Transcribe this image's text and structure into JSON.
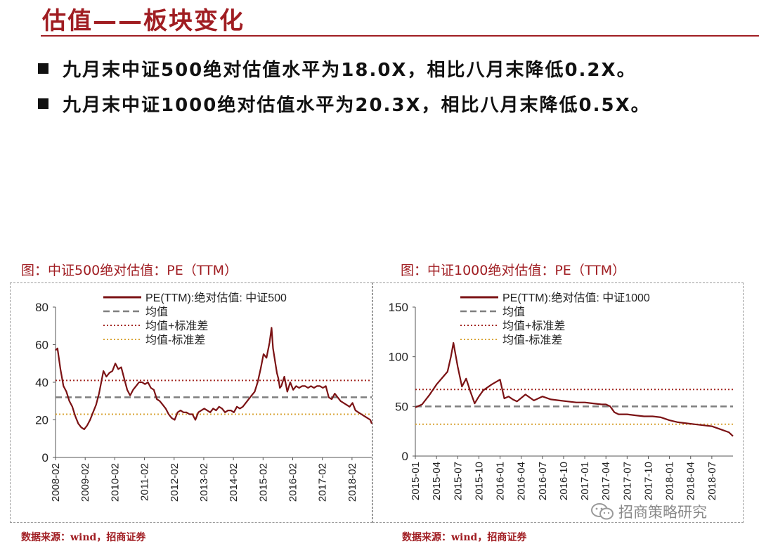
{
  "page": {
    "title": "估值——板块变化",
    "bullets": [
      "九月末中证500绝对估值水平为18.0X，相比八月末降低0.2X。",
      "九月末中证1000绝对估值水平为20.3X，相比八月末降低0.5X。"
    ],
    "watermark": "招商策略研究"
  },
  "colors": {
    "accent": "#a01d22",
    "series": "#7b1214",
    "mean": "#7f7f7f",
    "upper": "#a42a24",
    "lower": "#d9a63a"
  },
  "chart_data": [
    {
      "type": "line",
      "title": "图：中证500绝对估值：PE（TTM）",
      "source": "数据来源：wind，招商证券",
      "ylim": [
        0,
        80
      ],
      "yticks": [
        0,
        20,
        40,
        60,
        80
      ],
      "xlim": [
        2008.083,
        2018.75
      ],
      "xticks": [
        "2008-02",
        "2009-02",
        "2010-02",
        "2011-02",
        "2012-02",
        "2013-02",
        "2014-02",
        "2015-02",
        "2016-02",
        "2017-02",
        "2018-02"
      ],
      "legend": [
        "PE(TTM):绝对估值: 中证500",
        "均值",
        "均值+标准差",
        "均值-标准差"
      ],
      "mean": 32,
      "upper": 41,
      "lower": 23,
      "series": [
        {
          "name": "PE(TTM):绝对估值: 中证500",
          "x": [
            2008.08,
            2008.15,
            2008.25,
            2008.35,
            2008.45,
            2008.55,
            2008.65,
            2008.75,
            2008.85,
            2008.95,
            2009.05,
            2009.15,
            2009.25,
            2009.35,
            2009.45,
            2009.55,
            2009.6,
            2009.7,
            2009.8,
            2009.9,
            2010.0,
            2010.1,
            2010.2,
            2010.3,
            2010.4,
            2010.5,
            2010.6,
            2010.7,
            2010.8,
            2010.9,
            2011.0,
            2011.1,
            2011.2,
            2011.3,
            2011.4,
            2011.5,
            2011.6,
            2011.7,
            2011.8,
            2011.9,
            2012.0,
            2012.1,
            2012.2,
            2012.3,
            2012.4,
            2012.5,
            2012.6,
            2012.7,
            2012.8,
            2012.9,
            2013.0,
            2013.1,
            2013.2,
            2013.3,
            2013.4,
            2013.5,
            2013.6,
            2013.7,
            2013.8,
            2013.9,
            2014.0,
            2014.1,
            2014.2,
            2014.3,
            2014.4,
            2014.5,
            2014.6,
            2014.7,
            2014.8,
            2014.9,
            2015.0,
            2015.1,
            2015.2,
            2015.3,
            2015.37,
            2015.42,
            2015.5,
            2015.55,
            2015.6,
            2015.65,
            2015.7,
            2015.8,
            2015.9,
            2016.0,
            2016.1,
            2016.2,
            2016.3,
            2016.4,
            2016.5,
            2016.6,
            2016.7,
            2016.8,
            2016.9,
            2017.0,
            2017.1,
            2017.2,
            2017.3,
            2017.4,
            2017.5,
            2017.6,
            2017.7,
            2017.8,
            2017.9,
            2018.0,
            2018.1,
            2018.2,
            2018.3,
            2018.4,
            2018.5,
            2018.6,
            2018.7,
            2018.75
          ],
          "y": [
            57,
            58,
            47,
            38,
            35,
            30,
            27,
            22,
            18,
            16,
            15,
            17,
            20,
            24,
            28,
            34,
            38,
            46,
            43,
            45,
            46,
            50,
            47,
            48,
            42,
            36,
            33,
            36,
            38,
            40,
            40,
            39,
            40,
            37,
            36,
            31,
            30,
            28,
            26,
            23,
            21,
            20,
            24,
            25,
            24,
            24,
            23,
            23,
            20,
            24,
            25,
            26,
            25,
            24,
            26,
            25,
            27,
            26,
            24,
            25,
            25,
            24,
            27,
            26,
            27,
            29,
            31,
            33,
            35,
            40,
            47,
            55,
            53,
            61,
            69,
            58,
            50,
            45,
            42,
            37,
            38,
            43,
            35,
            40,
            36,
            38,
            37,
            38,
            38,
            37,
            38,
            37,
            38,
            38,
            37,
            38,
            32,
            31,
            34,
            32,
            30,
            29,
            28,
            27,
            29,
            25,
            24,
            23,
            22,
            21,
            20,
            18
          ]
        }
      ]
    },
    {
      "type": "line",
      "title": "图：中证1000绝对估值：PE（TTM）",
      "source": "数据来源：wind，招商证券",
      "ylim": [
        0,
        150
      ],
      "yticks": [
        0,
        50,
        100,
        150
      ],
      "xlim": [
        2015.0,
        2018.75
      ],
      "xticks": [
        "2015-01",
        "2015-04",
        "2015-07",
        "2015-10",
        "2016-01",
        "2016-04",
        "2016-07",
        "2016-10",
        "2017-01",
        "2017-04",
        "2017-07",
        "2017-10",
        "2018-01",
        "2018-04",
        "2018-07"
      ],
      "legend": [
        "PE(TTM):绝对估值: 中证1000",
        "均值",
        "均值+标准差",
        "均值-标准差"
      ],
      "mean": 50,
      "upper": 67,
      "lower": 32,
      "series": [
        {
          "name": "PE(TTM):绝对估值: 中证1000",
          "x": [
            2015.0,
            2015.08,
            2015.17,
            2015.25,
            2015.33,
            2015.38,
            2015.42,
            2015.45,
            2015.5,
            2015.55,
            2015.6,
            2015.65,
            2015.7,
            2015.75,
            2015.8,
            2015.9,
            2016.0,
            2016.05,
            2016.1,
            2016.15,
            2016.2,
            2016.3,
            2016.4,
            2016.5,
            2016.6,
            2016.7,
            2016.8,
            2016.9,
            2017.0,
            2017.1,
            2017.2,
            2017.25,
            2017.3,
            2017.35,
            2017.4,
            2017.5,
            2017.6,
            2017.7,
            2017.8,
            2017.9,
            2018.0,
            2018.1,
            2018.2,
            2018.3,
            2018.4,
            2018.5,
            2018.6,
            2018.7,
            2018.75
          ],
          "y": [
            49,
            52,
            62,
            72,
            80,
            85,
            100,
            114,
            90,
            70,
            78,
            65,
            53,
            60,
            66,
            72,
            77,
            58,
            60,
            57,
            55,
            62,
            56,
            60,
            57,
            56,
            55,
            54,
            54,
            53,
            52,
            52,
            50,
            44,
            42,
            42,
            41,
            40,
            40,
            39,
            36,
            34,
            33,
            32,
            31,
            30,
            27,
            24,
            20
          ]
        }
      ]
    }
  ]
}
